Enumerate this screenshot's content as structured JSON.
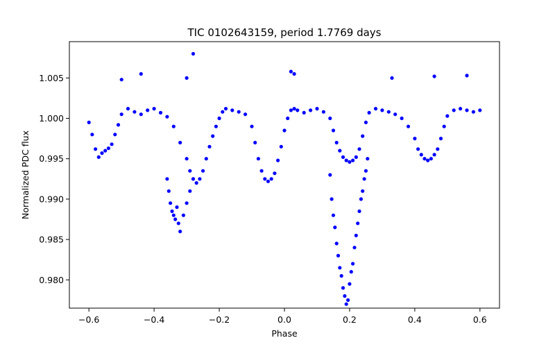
{
  "chart_data": {
    "type": "scatter",
    "title": "TIC 0102643159, period 1.7769 days",
    "xlabel": "Phase",
    "ylabel": "Normalized PDC flux",
    "xlim": [
      -0.66,
      0.66
    ],
    "ylim": [
      0.9765,
      1.0095
    ],
    "grid": false,
    "legend": "none",
    "marker_color": "#0000ff",
    "x_ticks": [
      {
        "value": -0.6,
        "label": "−0.6"
      },
      {
        "value": -0.4,
        "label": "−0.4"
      },
      {
        "value": -0.2,
        "label": "−0.2"
      },
      {
        "value": 0.0,
        "label": "0.0"
      },
      {
        "value": 0.2,
        "label": "0.2"
      },
      {
        "value": 0.4,
        "label": "0.4"
      },
      {
        "value": 0.6,
        "label": "0.6"
      }
    ],
    "y_ticks": [
      {
        "value": 0.98,
        "label": "0.980"
      },
      {
        "value": 0.985,
        "label": "0.985"
      },
      {
        "value": 0.99,
        "label": "0.990"
      },
      {
        "value": 0.995,
        "label": "0.995"
      },
      {
        "value": 1.0,
        "label": "1.000"
      },
      {
        "value": 1.005,
        "label": "1.005"
      }
    ],
    "x": [
      -0.6,
      -0.59,
      -0.58,
      -0.57,
      -0.56,
      -0.55,
      -0.54,
      -0.53,
      -0.52,
      -0.51,
      -0.5,
      -0.48,
      -0.46,
      -0.44,
      -0.42,
      -0.4,
      -0.38,
      -0.36,
      -0.34,
      -0.32,
      -0.3,
      -0.29,
      -0.28,
      -0.27,
      -0.26,
      -0.25,
      -0.24,
      -0.23,
      -0.22,
      -0.21,
      -0.2,
      -0.19,
      -0.18,
      -0.16,
      -0.14,
      -0.12,
      -0.1,
      -0.09,
      -0.08,
      -0.07,
      -0.06,
      -0.05,
      -0.04,
      -0.03,
      -0.02,
      -0.01,
      0.0,
      0.01,
      0.02,
      0.03,
      0.04,
      0.06,
      0.08,
      0.1,
      0.12,
      0.14,
      0.15,
      0.16,
      0.17,
      0.18,
      0.19,
      0.2,
      0.21,
      0.22,
      0.23,
      0.24,
      0.25,
      0.26,
      0.28,
      0.3,
      0.32,
      0.34,
      0.36,
      0.38,
      0.4,
      0.41,
      0.42,
      0.43,
      0.44,
      0.45,
      0.46,
      0.47,
      0.48,
      0.49,
      0.5,
      0.52,
      0.54,
      0.56,
      0.58,
      0.6,
      -0.36,
      -0.355,
      -0.35,
      -0.345,
      -0.34,
      -0.335,
      -0.33,
      -0.325,
      -0.32,
      -0.31,
      -0.3,
      -0.29,
      -0.28,
      0.14,
      0.145,
      0.15,
      0.155,
      0.16,
      0.165,
      0.17,
      0.175,
      0.18,
      0.185,
      0.19,
      0.195,
      0.2,
      0.205,
      0.21,
      0.215,
      0.22,
      0.225,
      0.23,
      0.235,
      0.24,
      0.245,
      0.25,
      0.255,
      -0.44,
      -0.28,
      -0.3,
      0.02,
      0.03,
      0.33,
      0.46,
      0.56,
      -0.5
    ],
    "y": [
      0.9995,
      0.998,
      0.9962,
      0.9952,
      0.9957,
      0.996,
      0.9963,
      0.9968,
      0.998,
      0.9992,
      1.0005,
      1.0012,
      1.0008,
      1.0005,
      1.001,
      1.0012,
      1.0007,
      1.0002,
      0.999,
      0.997,
      0.995,
      0.9935,
      0.9925,
      0.992,
      0.9925,
      0.9935,
      0.995,
      0.9965,
      0.9978,
      0.999,
      1.0,
      1.0008,
      1.0012,
      1.001,
      1.0008,
      1.0005,
      0.999,
      0.997,
      0.995,
      0.9935,
      0.9925,
      0.9922,
      0.9925,
      0.9932,
      0.9948,
      0.9965,
      0.9985,
      1.0,
      1.001,
      1.0012,
      1.001,
      1.0007,
      1.001,
      1.0012,
      1.0008,
      1.0,
      0.9985,
      0.997,
      0.996,
      0.9952,
      0.9948,
      0.9946,
      0.9948,
      0.9952,
      0.9962,
      0.9978,
      0.9995,
      1.0007,
      1.0012,
      1.001,
      1.0008,
      1.0005,
      1.0,
      0.999,
      0.9975,
      0.9962,
      0.9955,
      0.995,
      0.9948,
      0.995,
      0.9955,
      0.9962,
      0.9975,
      0.999,
      1.0003,
      1.001,
      1.0012,
      1.001,
      1.0008,
      1.001,
      0.9925,
      0.991,
      0.9895,
      0.9885,
      0.988,
      0.9875,
      0.989,
      0.987,
      0.986,
      0.988,
      0.9895,
      0.991,
      0.9925,
      0.993,
      0.99,
      0.988,
      0.9865,
      0.9845,
      0.983,
      0.9815,
      0.9805,
      0.979,
      0.978,
      0.977,
      0.9775,
      0.9795,
      0.981,
      0.982,
      0.984,
      0.9855,
      0.987,
      0.9885,
      0.99,
      0.991,
      0.9925,
      0.9935,
      0.995,
      1.0055,
      1.008,
      1.005,
      1.0058,
      1.0055,
      1.005,
      1.0052,
      1.0053,
      1.0048
    ]
  }
}
